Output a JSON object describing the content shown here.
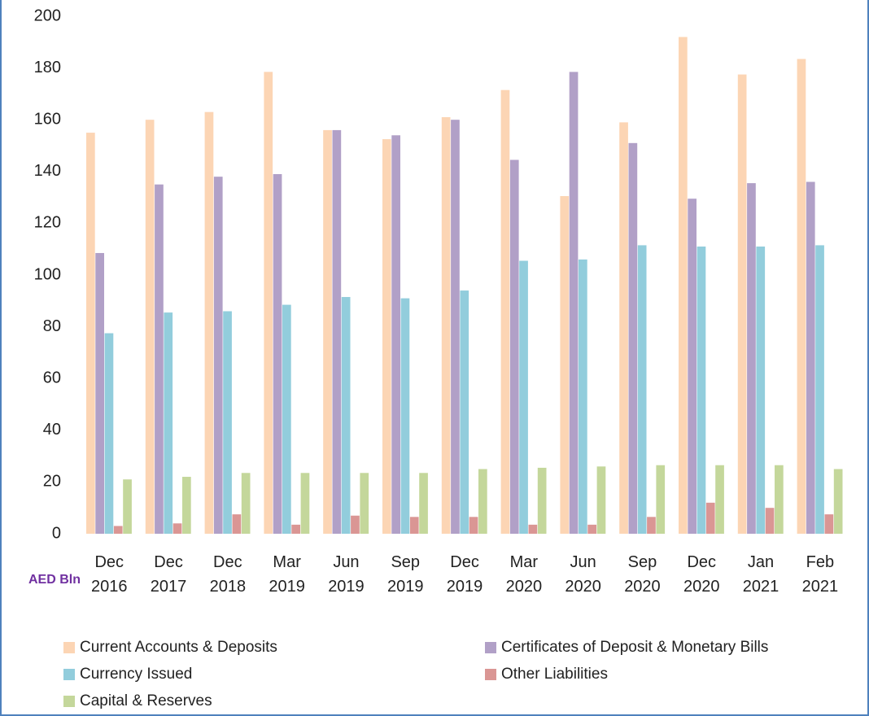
{
  "chart_data": {
    "type": "bar",
    "y_axis_label": "AED Bln",
    "categories": [
      "Dec 2016",
      "Dec 2017",
      "Dec 2018",
      "Mar 2019",
      "Jun 2019",
      "Sep 2019",
      "Dec 2019",
      "Mar 2020",
      "Jun 2020",
      "Sep 2020",
      "Dec 2020",
      "Jan 2021",
      "Feb 2021"
    ],
    "series": [
      {
        "name": "Current Accounts & Deposits",
        "color": "#fcd5b4",
        "values": [
          155,
          160,
          163,
          178.5,
          156,
          152.5,
          161,
          171.5,
          130.5,
          159,
          192,
          177.5,
          183.5
        ]
      },
      {
        "name": "Certificates of Deposit & Monetary Bills",
        "color": "#b1a0c7",
        "values": [
          108.5,
          135,
          138,
          139,
          156,
          154,
          160,
          144.5,
          178.5,
          151,
          129.5,
          135.5,
          136
        ]
      },
      {
        "name": "Currency Issued",
        "color": "#92cddc",
        "values": [
          77.5,
          85.5,
          86,
          88.5,
          91.5,
          91,
          94,
          105.5,
          106,
          111.5,
          111,
          111,
          111.5
        ]
      },
      {
        "name": "Other Liabilities",
        "color": "#da9694",
        "values": [
          3,
          4,
          7.5,
          3.5,
          7,
          6.5,
          6.5,
          3.5,
          3.5,
          6.5,
          12,
          10,
          7.5
        ]
      },
      {
        "name": "Capital & Reserves",
        "color": "#c4d79b",
        "values": [
          21,
          22,
          23.5,
          23.5,
          23.5,
          23.5,
          25,
          25.5,
          26,
          26.5,
          26.5,
          26.5,
          25
        ]
      }
    ],
    "ylim": [
      0,
      200
    ],
    "yticks": [
      0,
      20,
      40,
      60,
      80,
      100,
      120,
      140,
      160,
      180,
      200
    ],
    "grid": false
  }
}
